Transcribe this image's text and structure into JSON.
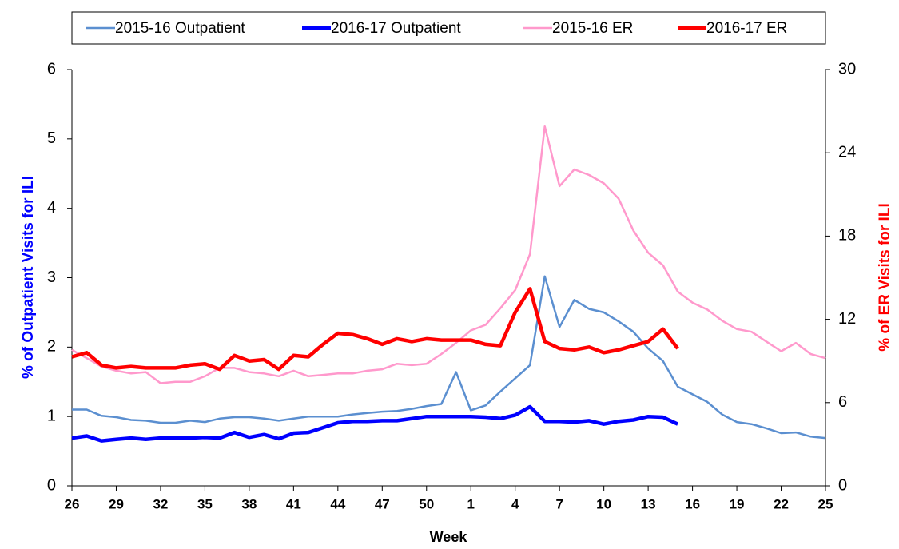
{
  "chart_data": {
    "type": "line",
    "categories": [
      "26",
      null,
      null,
      "29",
      null,
      null,
      "32",
      null,
      null,
      "35",
      null,
      null,
      "38",
      null,
      null,
      "41",
      null,
      null,
      "44",
      null,
      null,
      "47",
      null,
      null,
      "50",
      null,
      null,
      "1",
      null,
      null,
      "4",
      null,
      null,
      "7",
      null,
      null,
      "10",
      null,
      null,
      "13",
      null,
      null,
      "16",
      null,
      null,
      "19",
      null,
      null,
      "22",
      null,
      null,
      "25"
    ],
    "xlabel": "Week",
    "ylabel": "% of Outpatient Visits for ILI",
    "ylabel_color": "#0000ff",
    "y2label": "% of ER Visits for ILI",
    "y2label_color": "#ff0000",
    "ylim": [
      0,
      6
    ],
    "yticks": [
      0,
      1,
      2,
      3,
      4,
      5,
      6
    ],
    "y2lim": [
      0,
      30
    ],
    "y2ticks": [
      0,
      6,
      12,
      18,
      24,
      30
    ],
    "legend": "top",
    "series": [
      {
        "name": "2015-16 Outpatient",
        "color": "#5b8fd0",
        "width": 2.5,
        "values": [
          1.1,
          1.1,
          1.01,
          0.99,
          0.95,
          0.94,
          0.91,
          0.91,
          0.94,
          0.92,
          0.97,
          0.99,
          0.99,
          0.97,
          0.94,
          0.97,
          1.0,
          1.0,
          1.0,
          1.03,
          1.05,
          1.07,
          1.08,
          1.11,
          1.15,
          1.18,
          1.64,
          1.09,
          1.16,
          1.36,
          1.55,
          1.74,
          3.02,
          2.29,
          2.68,
          2.55,
          2.5,
          2.37,
          2.22,
          1.98,
          1.8,
          1.43,
          1.32,
          1.21,
          1.03,
          0.92,
          0.89,
          0.83,
          0.76,
          0.77,
          0.71,
          0.69
        ]
      },
      {
        "name": "2016-17 Outpatient",
        "color": "#0000ff",
        "width": 4.5,
        "values": [
          0.69,
          0.72,
          0.65,
          0.67,
          0.69,
          0.67,
          0.69,
          0.69,
          0.69,
          0.7,
          0.69,
          0.77,
          0.7,
          0.74,
          0.68,
          0.76,
          0.77,
          0.84,
          0.91,
          0.93,
          0.93,
          0.94,
          0.94,
          0.97,
          1.0,
          1.0,
          1.0,
          1.0,
          0.99,
          0.97,
          1.02,
          1.14,
          0.93,
          0.93,
          0.92,
          0.94,
          0.89,
          0.93,
          0.95,
          1.0,
          0.99,
          0.89,
          null,
          null,
          null,
          null,
          null,
          null,
          null,
          null,
          null,
          null
        ]
      },
      {
        "name": "2015-16 ER",
        "color": "#ff99cc",
        "width": 2.5,
        "axis": "y2",
        "values": [
          9.8,
          9.2,
          8.6,
          8.3,
          8.1,
          8.2,
          7.4,
          7.5,
          7.5,
          7.9,
          8.5,
          8.5,
          8.2,
          8.1,
          7.9,
          8.3,
          7.9,
          8.0,
          8.1,
          8.1,
          8.3,
          8.4,
          8.8,
          8.7,
          8.8,
          9.5,
          10.3,
          11.2,
          11.6,
          12.8,
          14.1,
          16.7,
          25.9,
          21.6,
          22.8,
          22.4,
          21.8,
          20.7,
          18.4,
          16.8,
          15.9,
          14.0,
          13.2,
          12.7,
          11.9,
          11.3,
          11.1,
          10.4,
          9.7,
          10.3,
          9.5,
          9.2
        ]
      },
      {
        "name": "2016-17 ER",
        "color": "#ff0000",
        "width": 4.5,
        "axis": "y2",
        "values": [
          9.3,
          9.6,
          8.7,
          8.5,
          8.6,
          8.5,
          8.5,
          8.5,
          8.7,
          8.8,
          8.4,
          9.4,
          9.0,
          9.1,
          8.4,
          9.4,
          9.3,
          10.2,
          11.0,
          10.9,
          10.6,
          10.2,
          10.6,
          10.4,
          10.6,
          10.5,
          10.5,
          10.5,
          10.2,
          10.1,
          12.5,
          14.2,
          10.4,
          9.9,
          9.8,
          10.0,
          9.6,
          9.8,
          10.1,
          10.4,
          11.3,
          9.9,
          null,
          null,
          null,
          null,
          null,
          null,
          null,
          null,
          null,
          null
        ]
      }
    ]
  }
}
